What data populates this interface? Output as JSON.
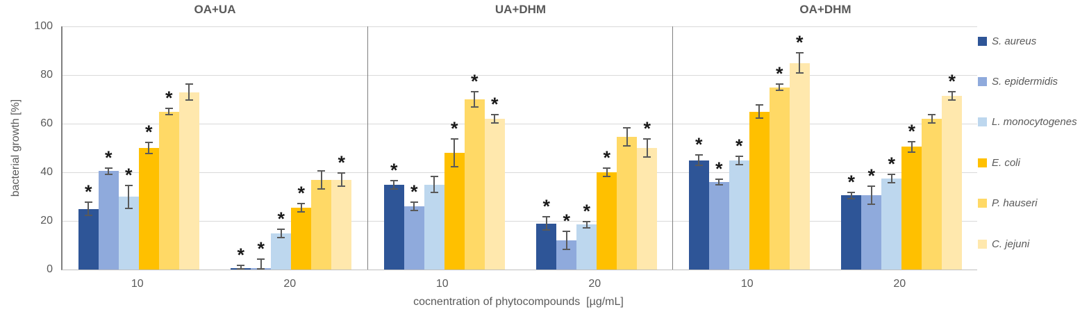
{
  "chart_data": {
    "type": "bar",
    "title": "",
    "ylabel": "bacterial growth [%]",
    "xlabel": "cocnentration of phytocompounds  [µg/mL]",
    "ylim": [
      0,
      100
    ],
    "y_tick_step": 20,
    "grid": true,
    "legend_position": "right",
    "categories": [
      "10",
      "20"
    ],
    "series_names": [
      "S. aureus",
      "S. epidermidis",
      "L. monocytogenes",
      "E. coli",
      "P. hauseri",
      "C. jejuni"
    ],
    "series_colors": [
      "#2E5597",
      "#8FAADC",
      "#BDD7EE",
      "#FFC000",
      "#FFD966",
      "#FFE8AD"
    ],
    "significance_marker": "*",
    "panels": [
      {
        "title": "OA+UA",
        "groups": [
          {
            "category": "10",
            "values": [
              25,
              40.5,
              30,
              50,
              65,
              73
            ],
            "errors": [
              3,
              1.5,
              5,
              2.5,
              1.5,
              3.5
            ],
            "significant": [
              true,
              true,
              true,
              true,
              true,
              false
            ]
          },
          {
            "category": "20",
            "values": [
              0.5,
              0.5,
              15,
              25.5,
              37,
              37
            ],
            "errors": [
              1.5,
              4,
              2,
              2,
              4,
              3
            ],
            "significant": [
              true,
              true,
              true,
              true,
              false,
              true
            ]
          }
        ]
      },
      {
        "title": "UA+DHM",
        "groups": [
          {
            "category": "10",
            "values": [
              35,
              26,
              35,
              48,
              70,
              62
            ],
            "errors": [
              2,
              2,
              3.5,
              6,
              3.5,
              2
            ],
            "significant": [
              true,
              true,
              false,
              true,
              true,
              true
            ]
          },
          {
            "category": "20",
            "values": [
              19,
              12,
              18.5,
              40,
              54.5,
              50
            ],
            "errors": [
              3,
              4,
              1.5,
              2,
              4,
              4
            ],
            "significant": [
              true,
              true,
              true,
              true,
              false,
              true
            ]
          }
        ]
      },
      {
        "title": "OA+DHM",
        "groups": [
          {
            "category": "10",
            "values": [
              45,
              36,
              45,
              65,
              75,
              85
            ],
            "errors": [
              2.5,
              1.5,
              2,
              3,
              1.5,
              4.5
            ],
            "significant": [
              true,
              true,
              true,
              false,
              true,
              true
            ]
          },
          {
            "category": "20",
            "values": [
              30.5,
              30.5,
              37.5,
              50.5,
              62,
              71.5
            ],
            "errors": [
              1.5,
              4,
              2,
              2.5,
              2,
              2
            ],
            "significant": [
              true,
              true,
              true,
              true,
              false,
              true
            ]
          }
        ]
      }
    ],
    "colors": {
      "gridline": "#D9D9D9",
      "axis_line": "#7F7F7F",
      "baseline": "#BFBFBF",
      "text": "#595959",
      "error_bar": "#595959",
      "star": "#1A1A1A"
    }
  }
}
